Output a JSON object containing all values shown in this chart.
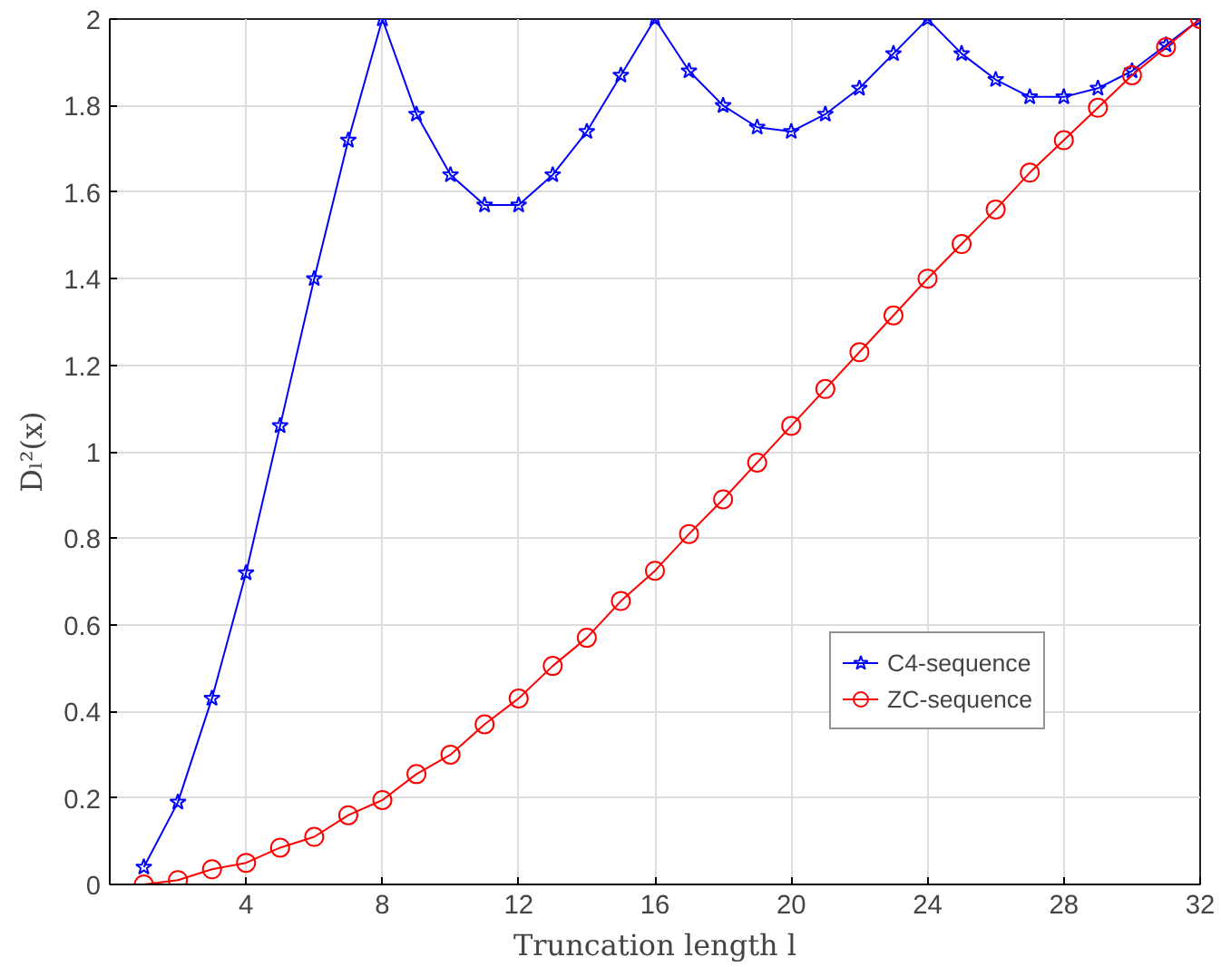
{
  "chart_data": {
    "type": "line",
    "xlabel": "Truncation length l",
    "ylabel": "Dₗ²(x)",
    "x": [
      1,
      2,
      3,
      4,
      5,
      6,
      7,
      8,
      9,
      10,
      11,
      12,
      13,
      14,
      15,
      16,
      17,
      18,
      19,
      20,
      21,
      22,
      23,
      24,
      25,
      26,
      27,
      28,
      29,
      30,
      31,
      32
    ],
    "series": [
      {
        "name": "C4-sequence",
        "color": "#0000ff",
        "marker": "star",
        "values": [
          0.04,
          0.19,
          0.43,
          0.72,
          1.06,
          1.4,
          1.72,
          2.0,
          1.78,
          1.64,
          1.57,
          1.57,
          1.64,
          1.74,
          1.87,
          2.0,
          1.88,
          1.8,
          1.75,
          1.74,
          1.78,
          1.84,
          1.92,
          2.0,
          1.92,
          1.86,
          1.82,
          1.82,
          1.84,
          1.88,
          1.94,
          2.0
        ]
      },
      {
        "name": "ZC-sequence",
        "color": "#ff0000",
        "marker": "circle",
        "values": [
          0,
          0.01,
          0.035,
          0.05,
          0.085,
          0.11,
          0.16,
          0.195,
          0.255,
          0.3,
          0.37,
          0.43,
          0.505,
          0.57,
          0.655,
          0.725,
          0.81,
          0.89,
          0.975,
          1.06,
          1.145,
          1.23,
          1.315,
          1.4,
          1.48,
          1.56,
          1.645,
          1.72,
          1.795,
          1.87,
          1.935,
          2.0
        ]
      }
    ],
    "xlim": [
      0,
      32
    ],
    "ylim": [
      0,
      2
    ],
    "xticks": [
      4,
      8,
      12,
      16,
      20,
      24,
      28,
      32
    ],
    "yticks": [
      0,
      0.2,
      0.4,
      0.6,
      0.8,
      1,
      1.2,
      1.4,
      1.6,
      1.8,
      2
    ],
    "grid": true,
    "legend": "bottom right",
    "line_style": "solid"
  }
}
